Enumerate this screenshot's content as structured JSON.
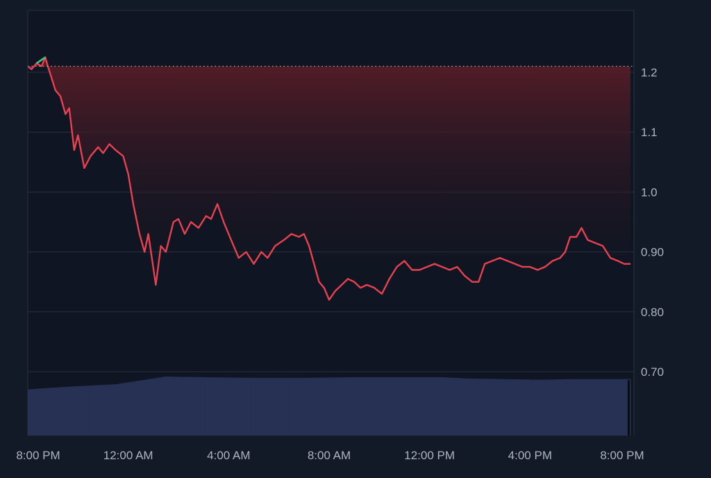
{
  "colors": {
    "background": "#131a27",
    "plot_background": "#0f1522",
    "grid": "#2a3140",
    "axis_label": "#aeb3bf",
    "price_down": "#e8414f",
    "price_up": "#3ec98a",
    "area_top": "#5a1d27",
    "volume": "#263154",
    "reference_line": "#c9ccd4"
  },
  "chart_data": {
    "type": "area",
    "title": "",
    "xlabel": "",
    "ylabel": "",
    "ylim": [
      0.6,
      1.3
    ],
    "reference_value": 1.21,
    "x_tick_labels": [
      "8:00 PM",
      "12:00 AM",
      "4:00 AM",
      "8:00 AM",
      "12:00 PM",
      "4:00 PM",
      "8:00 PM"
    ],
    "y_tick_labels": [
      "1.2",
      "1.1",
      "1.0",
      "0.90",
      "0.80",
      "0.70"
    ],
    "y_tick_values": [
      1.2,
      1.1,
      1.0,
      0.9,
      0.8,
      0.7
    ],
    "x_range_hours": [
      0,
      24
    ],
    "series": [
      {
        "values": [
          [
            0.0,
            1.21
          ],
          [
            0.15,
            1.205
          ],
          [
            0.35,
            1.215
          ],
          [
            0.55,
            1.21
          ],
          [
            0.7,
            1.225
          ],
          [
            0.8,
            1.21
          ],
          [
            0.95,
            1.19
          ],
          [
            1.1,
            1.17
          ],
          [
            1.3,
            1.16
          ],
          [
            1.5,
            1.13
          ],
          [
            1.65,
            1.14
          ],
          [
            1.85,
            1.07
          ],
          [
            2.0,
            1.095
          ],
          [
            2.25,
            1.04
          ],
          [
            2.5,
            1.06
          ],
          [
            2.8,
            1.075
          ],
          [
            3.0,
            1.065
          ],
          [
            3.25,
            1.08
          ],
          [
            3.5,
            1.07
          ],
          [
            3.8,
            1.06
          ],
          [
            4.0,
            1.03
          ],
          [
            4.2,
            0.98
          ],
          [
            4.45,
            0.93
          ],
          [
            4.65,
            0.9
          ],
          [
            4.8,
            0.93
          ],
          [
            5.1,
            0.845
          ],
          [
            5.3,
            0.91
          ],
          [
            5.5,
            0.9
          ],
          [
            5.8,
            0.95
          ],
          [
            6.0,
            0.955
          ],
          [
            6.25,
            0.93
          ],
          [
            6.5,
            0.95
          ],
          [
            6.8,
            0.94
          ],
          [
            7.1,
            0.96
          ],
          [
            7.3,
            0.955
          ],
          [
            7.55,
            0.98
          ],
          [
            7.8,
            0.95
          ],
          [
            8.1,
            0.92
          ],
          [
            8.4,
            0.89
          ],
          [
            8.7,
            0.9
          ],
          [
            9.0,
            0.88
          ],
          [
            9.3,
            0.9
          ],
          [
            9.55,
            0.89
          ],
          [
            9.85,
            0.91
          ],
          [
            10.2,
            0.92
          ],
          [
            10.5,
            0.93
          ],
          [
            10.8,
            0.925
          ],
          [
            11.0,
            0.93
          ],
          [
            11.2,
            0.91
          ],
          [
            11.4,
            0.88
          ],
          [
            11.6,
            0.85
          ],
          [
            11.8,
            0.84
          ],
          [
            12.0,
            0.82
          ],
          [
            12.25,
            0.835
          ],
          [
            12.5,
            0.845
          ],
          [
            12.75,
            0.855
          ],
          [
            13.0,
            0.85
          ],
          [
            13.25,
            0.84
          ],
          [
            13.5,
            0.845
          ],
          [
            13.8,
            0.84
          ],
          [
            14.1,
            0.83
          ],
          [
            14.4,
            0.855
          ],
          [
            14.7,
            0.875
          ],
          [
            15.0,
            0.885
          ],
          [
            15.3,
            0.87
          ],
          [
            15.6,
            0.87
          ],
          [
            15.9,
            0.875
          ],
          [
            16.2,
            0.88
          ],
          [
            16.5,
            0.875
          ],
          [
            16.8,
            0.87
          ],
          [
            17.1,
            0.875
          ],
          [
            17.4,
            0.86
          ],
          [
            17.7,
            0.85
          ],
          [
            17.95,
            0.85
          ],
          [
            18.2,
            0.88
          ],
          [
            18.5,
            0.885
          ],
          [
            18.8,
            0.89
          ],
          [
            19.1,
            0.885
          ],
          [
            19.4,
            0.88
          ],
          [
            19.7,
            0.875
          ],
          [
            20.0,
            0.875
          ],
          [
            20.3,
            0.87
          ],
          [
            20.6,
            0.875
          ],
          [
            20.9,
            0.885
          ],
          [
            21.2,
            0.89
          ],
          [
            21.4,
            0.9
          ],
          [
            21.6,
            0.925
          ],
          [
            21.85,
            0.925
          ],
          [
            22.05,
            0.94
          ],
          [
            22.3,
            0.92
          ],
          [
            22.6,
            0.915
          ],
          [
            22.9,
            0.91
          ],
          [
            23.2,
            0.89
          ],
          [
            23.5,
            0.885
          ],
          [
            23.75,
            0.88
          ],
          [
            24.0,
            0.88
          ]
        ]
      }
    ],
    "volume": {
      "values": [
        [
          0.0,
          0.36
        ],
        [
          1.5,
          0.38
        ],
        [
          2.5,
          0.39
        ],
        [
          3.5,
          0.4
        ],
        [
          4.5,
          0.43
        ],
        [
          5.5,
          0.46
        ],
        [
          7.0,
          0.455
        ],
        [
          9.0,
          0.45
        ],
        [
          11.0,
          0.45
        ],
        [
          13.0,
          0.455
        ],
        [
          15.0,
          0.455
        ],
        [
          16.5,
          0.455
        ],
        [
          17.5,
          0.445
        ],
        [
          19.0,
          0.44
        ],
        [
          20.5,
          0.435
        ],
        [
          21.5,
          0.44
        ],
        [
          23.5,
          0.44
        ],
        [
          24.0,
          0.44
        ]
      ],
      "max_relative": 1.0
    }
  }
}
